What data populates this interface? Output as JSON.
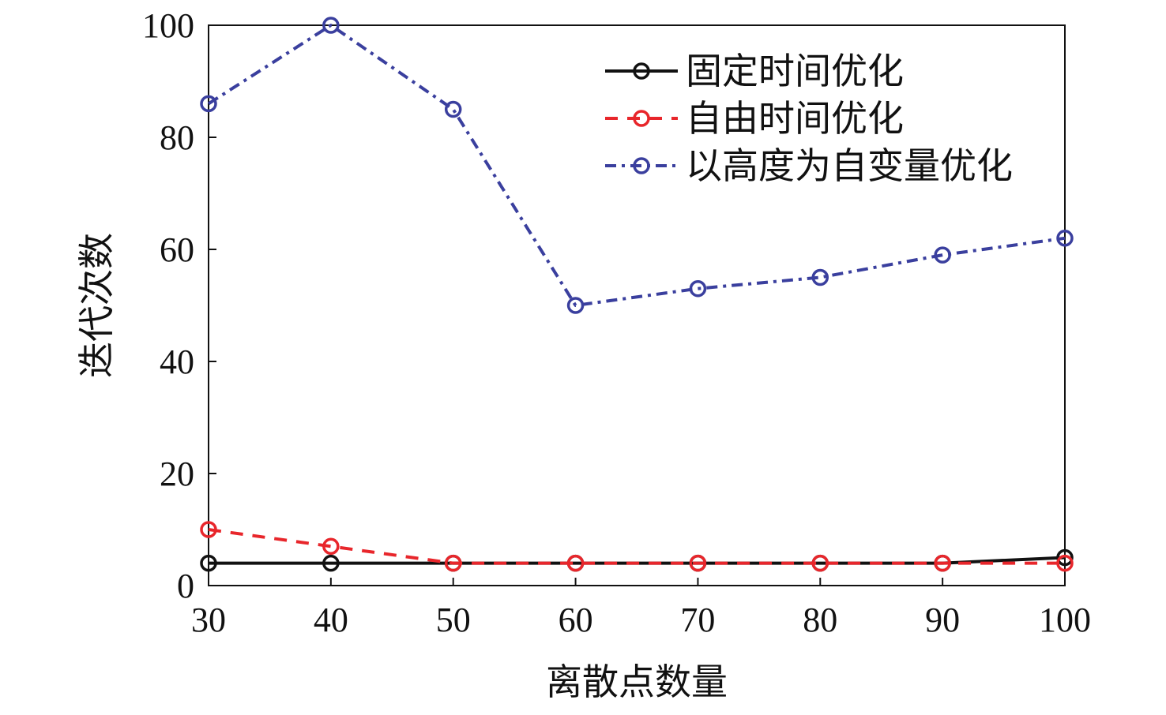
{
  "chart_data": {
    "type": "line",
    "title": "",
    "xlabel": "离散点数量",
    "ylabel": "迭代次数",
    "x": [
      30,
      40,
      50,
      60,
      70,
      80,
      90,
      100
    ],
    "xlim": [
      30,
      100
    ],
    "ylim": [
      0,
      100
    ],
    "xticks": [
      "30",
      "40",
      "50",
      "60",
      "70",
      "80",
      "90",
      "100"
    ],
    "yticks": [
      "0",
      "20",
      "40",
      "60",
      "80",
      "100"
    ],
    "grid": false,
    "legend_position": "top-right",
    "series": [
      {
        "name": "固定时间优化",
        "values": [
          4,
          4,
          4,
          4,
          4,
          4,
          4,
          5
        ],
        "color": "#111111",
        "line_style": "solid",
        "marker": "circle"
      },
      {
        "name": "自由时间优化",
        "values": [
          10,
          7,
          4,
          4,
          4,
          4,
          4,
          4
        ],
        "color": "#e8262b",
        "line_style": "dashed",
        "marker": "circle"
      },
      {
        "name": "以高度为自变量优化",
        "values": [
          86,
          100,
          85,
          50,
          53,
          55,
          59,
          62
        ],
        "color": "#3a3f9e",
        "line_style": "dash-dot",
        "marker": "circle"
      }
    ]
  }
}
